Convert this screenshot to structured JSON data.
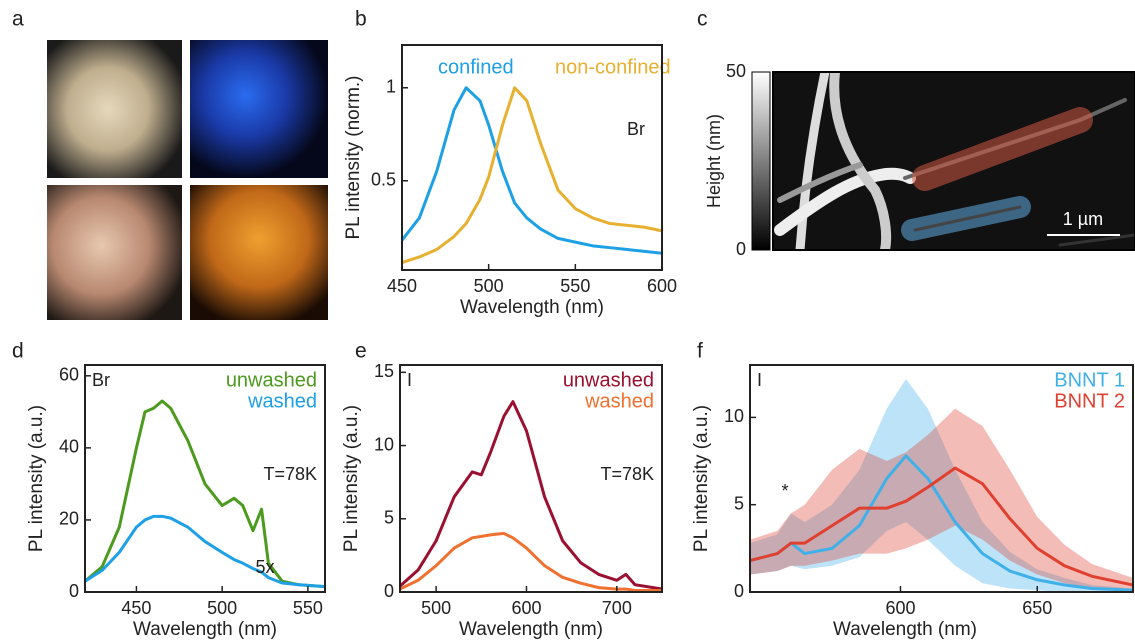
{
  "chart_data": [
    {
      "type": "image",
      "panel": "a"
    },
    {
      "type": "line",
      "panel": "b",
      "xlabel": "Wavelength (nm)",
      "ylabel": "PL intensity (norm.)",
      "xlim": [
        450,
        600
      ],
      "ylim": [
        0.02,
        1.23
      ],
      "xticks": [
        450,
        500,
        550,
        600
      ],
      "yticks": [
        0.5,
        1
      ],
      "x": [
        450,
        460,
        470,
        480,
        487,
        495,
        500,
        508,
        515,
        522,
        530,
        540,
        550,
        560,
        570,
        580,
        590,
        600
      ],
      "series": [
        {
          "name": "confined",
          "color": "#1ea0e6",
          "values": [
            0.18,
            0.3,
            0.55,
            0.88,
            1.0,
            0.93,
            0.8,
            0.55,
            0.38,
            0.3,
            0.24,
            0.19,
            0.17,
            0.15,
            0.14,
            0.13,
            0.12,
            0.11
          ]
        },
        {
          "name": "non-confined",
          "color": "#e8b030",
          "values": [
            0.06,
            0.09,
            0.13,
            0.2,
            0.27,
            0.4,
            0.52,
            0.8,
            1.0,
            0.93,
            0.7,
            0.45,
            0.35,
            0.3,
            0.27,
            0.26,
            0.25,
            0.23
          ]
        }
      ],
      "annotations": [
        "Br"
      ]
    },
    {
      "type": "heatmap",
      "panel": "c",
      "ylabel": "Height (nm)",
      "colorbar_ticks": [
        0,
        50
      ],
      "scale_bar": "1 µm"
    },
    {
      "type": "line",
      "panel": "d",
      "xlabel": "Wavelength (nm)",
      "ylabel": "PL intensity (a.u.)",
      "xlim": [
        420,
        560
      ],
      "ylim": [
        0,
        63
      ],
      "xticks": [
        450,
        500,
        550
      ],
      "yticks": [
        0,
        20,
        40,
        60
      ],
      "x": [
        420,
        430,
        440,
        450,
        455,
        460,
        465,
        470,
        480,
        490,
        500,
        507,
        512,
        518,
        523,
        527,
        535,
        545,
        560
      ],
      "series": [
        {
          "name": "unwashed",
          "color": "#4c9a1e",
          "values": [
            3,
            7,
            18,
            40,
            50,
            51,
            53,
            51,
            42,
            30,
            24,
            26,
            24,
            17,
            23,
            8,
            3,
            2,
            1.5
          ]
        },
        {
          "name": "washed",
          "color": "#1ea0e6",
          "values": [
            3,
            6,
            11,
            18,
            20,
            21,
            21,
            20.5,
            18,
            14,
            11,
            9,
            8,
            6.5,
            5.5,
            4,
            2.5,
            2,
            1.5
          ]
        }
      ],
      "annotations": [
        "Br",
        "T=78K",
        "5x"
      ]
    },
    {
      "type": "line",
      "panel": "e",
      "xlabel": "Wavelength (nm)",
      "ylabel": "PL intensity (a.u.)",
      "xlim": [
        460,
        750
      ],
      "ylim": [
        0,
        15.5
      ],
      "xticks": [
        500,
        600,
        700
      ],
      "yticks": [
        0,
        5,
        10,
        15
      ],
      "x": [
        460,
        480,
        500,
        520,
        540,
        550,
        560,
        575,
        585,
        600,
        620,
        640,
        660,
        680,
        700,
        710,
        720,
        750
      ],
      "series": [
        {
          "name": "unwashed",
          "color": "#9b1030",
          "values": [
            0.4,
            1.5,
            3.5,
            6.5,
            8.2,
            8,
            9.5,
            12,
            13,
            11,
            6.5,
            3.5,
            2,
            1.2,
            0.8,
            1.2,
            0.5,
            0.2
          ]
        },
        {
          "name": "washed",
          "color": "#f07030",
          "values": [
            0.2,
            0.8,
            1.8,
            3,
            3.7,
            3.8,
            3.9,
            4,
            3.7,
            3,
            1.8,
            1,
            0.6,
            0.3,
            0.2,
            0.2,
            0.1,
            0.1
          ]
        }
      ],
      "annotations": [
        "I",
        "T=78K"
      ]
    },
    {
      "type": "line",
      "panel": "f",
      "xlabel": "Wavelength (nm)",
      "ylabel": "PL intensity (a.u.)",
      "xlim": [
        545,
        685
      ],
      "ylim": [
        0,
        13
      ],
      "xticks": [
        600,
        650
      ],
      "yticks": [
        0,
        5,
        10
      ],
      "x": [
        545,
        555,
        560,
        565,
        575,
        585,
        595,
        602,
        610,
        620,
        630,
        640,
        650,
        660,
        670,
        685
      ],
      "series": [
        {
          "name": "BNNT 1",
          "color": "#3fb0e8",
          "values": [
            1.8,
            2.2,
            2.8,
            2.2,
            2.5,
            3.8,
            6.5,
            7.8,
            6.5,
            4,
            2.2,
            1.2,
            0.7,
            0.4,
            0.2,
            0.1
          ],
          "lower": [
            1,
            1.2,
            1.5,
            1.3,
            1.5,
            2,
            3.5,
            4,
            3,
            1.5,
            0.5,
            0.2,
            0.1,
            0,
            0,
            0
          ],
          "upper": [
            2.8,
            3.3,
            4.5,
            4,
            5,
            7,
            10.5,
            12.2,
            10.5,
            7,
            4,
            2.3,
            1.3,
            0.8,
            0.4,
            0.2
          ]
        },
        {
          "name": "BNNT 2",
          "color": "#e04030",
          "values": [
            1.8,
            2.2,
            2.8,
            2.8,
            3.8,
            4.8,
            4.8,
            5.2,
            6,
            7.1,
            6.2,
            4.2,
            2.5,
            1.5,
            0.9,
            0.4
          ],
          "lower": [
            1,
            1.2,
            1.5,
            1.5,
            1.8,
            2.2,
            2.2,
            2.5,
            3,
            3.8,
            3,
            1.8,
            1,
            0.5,
            0.2,
            0.1
          ],
          "upper": [
            3,
            3.5,
            4.5,
            5,
            7,
            8.2,
            7.5,
            8,
            9,
            10.5,
            9.5,
            7,
            4.3,
            2.7,
            1.6,
            0.8
          ]
        }
      ],
      "annotations": [
        "I",
        "*"
      ]
    }
  ]
}
